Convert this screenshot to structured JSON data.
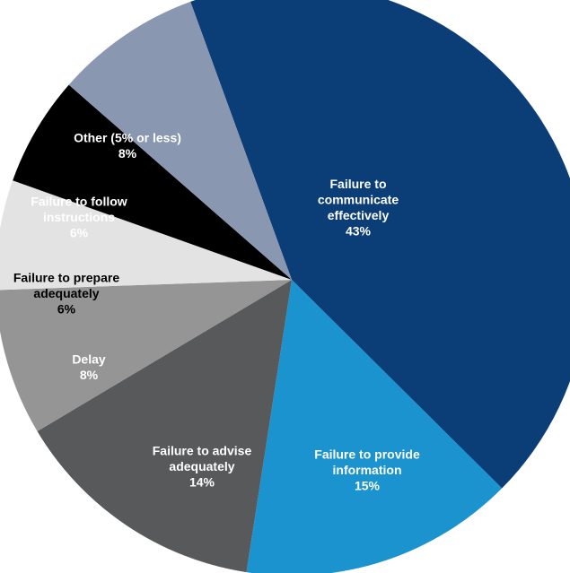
{
  "chart_data": {
    "type": "pie",
    "start_angle_deg": 340,
    "direction": "clockwise",
    "slices": [
      {
        "lines": [
          "Failure to",
          "communicate",
          "effectively"
        ],
        "pct_label": "43%",
        "value": 43,
        "color": "#0b3d77",
        "text_color": "#ffffff"
      },
      {
        "lines": [
          "Failure to provide",
          "information"
        ],
        "pct_label": "15%",
        "value": 15,
        "color": "#1a93ce",
        "text_color": "#ffffff"
      },
      {
        "lines": [
          "Failure to advise",
          "adequately"
        ],
        "pct_label": "14%",
        "value": 14,
        "color": "#58595b",
        "text_color": "#ffffff"
      },
      {
        "lines": [
          "Delay"
        ],
        "pct_label": "8%",
        "value": 8,
        "color": "#959595",
        "text_color": "#ffffff"
      },
      {
        "lines": [
          "Failure to prepare",
          "adequately"
        ],
        "pct_label": "6%",
        "value": 6,
        "color": "#e3e3e3",
        "text_color": "#000000"
      },
      {
        "lines": [
          "Failure to follow",
          "instructions"
        ],
        "pct_label": "6%",
        "value": 6,
        "color": "#000000",
        "text_color": "#ffffff"
      },
      {
        "lines": [
          "Other (5% or less)"
        ],
        "pct_label": "8%",
        "value": 8,
        "color": "#8a97b1",
        "text_color": "#ffffff"
      }
    ]
  }
}
